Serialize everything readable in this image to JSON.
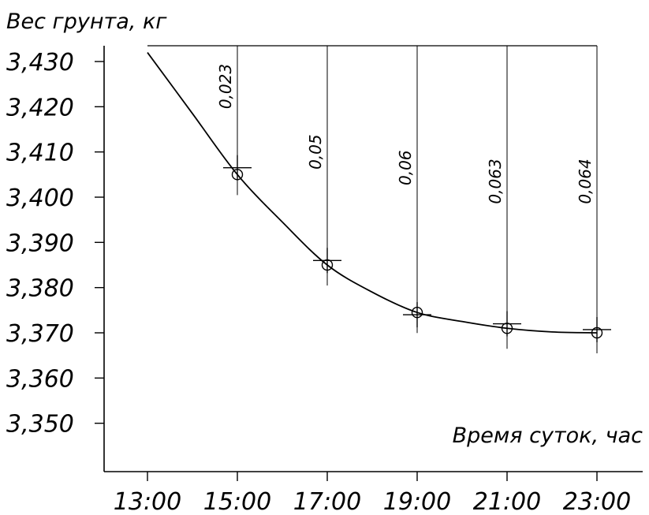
{
  "chart_data": {
    "type": "line",
    "ylabel": "Вес грунта, кг",
    "xlabel": "Время суток, час",
    "x_ticks": [
      "13:00",
      "15:00",
      "17:00",
      "19:00",
      "21:00",
      "23:00"
    ],
    "y_ticks": [
      "3,430",
      "3,420",
      "3,410",
      "3,400",
      "3,390",
      "3,380",
      "3,370",
      "3,360",
      "3,350"
    ],
    "y_tick_values": [
      3.43,
      3.42,
      3.41,
      3.4,
      3.39,
      3.38,
      3.37,
      3.36,
      3.35
    ],
    "ylim": [
      3.343,
      3.432
    ],
    "xlim": [
      12,
      24
    ],
    "series": [
      {
        "x": [
          13,
          15,
          17,
          19,
          21,
          23
        ],
        "y": [
          3.432,
          3.405,
          3.385,
          3.3745,
          3.371,
          3.37
        ]
      }
    ],
    "curve": {
      "x": [
        13,
        14,
        15,
        16,
        17,
        18,
        19,
        20,
        21,
        22,
        23
      ],
      "y": [
        3.432,
        3.4185,
        3.405,
        3.3945,
        3.385,
        3.379,
        3.3745,
        3.3725,
        3.371,
        3.3702,
        3.37
      ]
    },
    "markers": [
      {
        "x": 15,
        "y": 3.405
      },
      {
        "x": 17,
        "y": 3.385
      },
      {
        "x": 19,
        "y": 3.3745
      },
      {
        "x": 21,
        "y": 3.371
      },
      {
        "x": 23,
        "y": 3.37
      }
    ],
    "crosses": [
      {
        "x": 15,
        "y": 3.4065
      },
      {
        "x": 17,
        "y": 3.386
      },
      {
        "x": 19,
        "y": 3.374
      },
      {
        "x": 21,
        "y": 3.372
      },
      {
        "x": 23,
        "y": 3.3707
      }
    ],
    "annotations": [
      {
        "x": 15,
        "text": "0,023",
        "y": 3.4245
      },
      {
        "x": 17,
        "text": "0,05",
        "y": 3.41
      },
      {
        "x": 19,
        "text": "0,06",
        "y": 3.4065
      },
      {
        "x": 21,
        "text": "0,063",
        "y": 3.4035
      },
      {
        "x": 23,
        "text": "0,064",
        "y": 3.4035
      }
    ],
    "grid": false,
    "legend": "none"
  }
}
